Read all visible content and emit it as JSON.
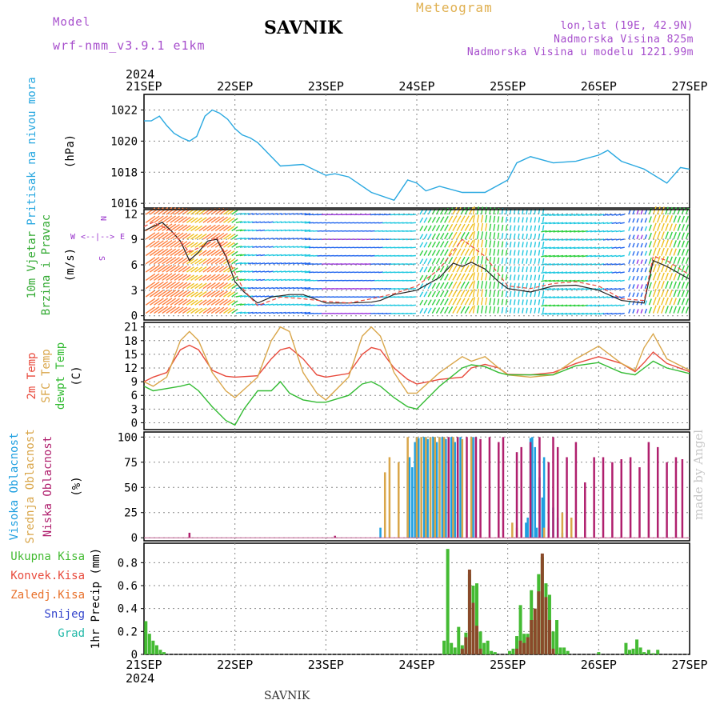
{
  "header": {
    "model_label": "Model",
    "model_name": "wrf-nmm_v3.9.1 e1km",
    "station": "SAVNIK",
    "product": "Meteogram",
    "info_lines": [
      "lon,lat (19E, 42.9N)",
      "Nadmorska Visina 825m",
      "Nadmorska Visina u modelu 1221.99m"
    ]
  },
  "footer": {
    "station": "SAVNIK",
    "credit": "made by Angel"
  },
  "x_axis": {
    "year": "2024",
    "ticks": [
      "21SEP",
      "22SEP",
      "23SEP",
      "24SEP",
      "25SEP",
      "26SEP",
      "27SEP"
    ]
  },
  "colors": {
    "pressure": "#29a8e0",
    "temp": "#e84a3c",
    "sfc_temp": "#d9a64a",
    "dewpt": "#33bb33",
    "high_cloud": "#1e9fe0",
    "mid_cloud": "#d9a64a",
    "low_cloud": "#b0206e",
    "total_precip": "#44bb33",
    "conv_precip": "#8a4a2a",
    "snow": "#3344cc",
    "grad": "#22b8a8",
    "wind_dir_label": "#9933cc"
  },
  "chart_data": [
    {
      "type": "line",
      "panel": "pressure",
      "ylabels": [
        "Pritisak na nivou mora",
        "(hPa)"
      ],
      "ylim": [
        1015.7,
        1023
      ],
      "yticks": [
        1016,
        1018,
        1020,
        1022
      ],
      "grid": true,
      "series": [
        {
          "name": "Pritisak na nivou mora",
          "x": [
            0,
            0.08,
            0.17,
            0.25,
            0.33,
            0.42,
            0.5,
            0.58,
            0.67,
            0.75,
            0.83,
            0.92,
            1.0,
            1.08,
            1.17,
            1.25,
            1.5,
            1.75,
            2.0,
            2.1,
            2.25,
            2.5,
            2.75,
            2.9,
            3.0,
            3.1,
            3.25,
            3.5,
            3.75,
            4.0,
            4.1,
            4.25,
            4.5,
            4.75,
            5.0,
            5.1,
            5.25,
            5.5,
            5.75,
            5.9,
            6.0
          ],
          "y": [
            1021.3,
            1021.3,
            1021.6,
            1021,
            1020.5,
            1020.2,
            1020,
            1020.3,
            1021.6,
            1022,
            1021.8,
            1021.4,
            1020.8,
            1020.4,
            1020.2,
            1019.9,
            1018.4,
            1018.5,
            1017.8,
            1017.9,
            1017.7,
            1016.7,
            1016.2,
            1017.5,
            1017.3,
            1016.8,
            1017.1,
            1016.7,
            1016.7,
            1017.5,
            1018.6,
            1019,
            1018.6,
            1018.7,
            1019.1,
            1019.4,
            1018.7,
            1018.2,
            1017.3,
            1018.3,
            1018.2
          ]
        }
      ]
    },
    {
      "type": "line",
      "panel": "wind",
      "ylabels": [
        "10m Vjetar",
        "Brzina i Pravac",
        "(m/s)"
      ],
      "direction_labels": [
        "W",
        "<--|-->",
        "E",
        "N",
        "S"
      ],
      "ylim": [
        -0.5,
        12.5
      ],
      "yticks": [
        0,
        3,
        6,
        9,
        12
      ],
      "grid": true,
      "series": [
        {
          "name": "Brzina",
          "x": [
            0,
            0.1,
            0.2,
            0.3,
            0.4,
            0.5,
            0.6,
            0.7,
            0.8,
            0.9,
            1.0,
            1.1,
            1.25,
            1.4,
            1.6,
            1.75,
            2.0,
            2.25,
            2.5,
            2.6,
            2.75,
            3.0,
            3.25,
            3.4,
            3.5,
            3.6,
            3.75,
            3.9,
            4.0,
            4.25,
            4.5,
            4.75,
            5.0,
            5.25,
            5.5,
            5.6,
            5.75,
            6.0
          ],
          "y": [
            10,
            10.5,
            11,
            10,
            8.8,
            6.5,
            7.5,
            8.8,
            9,
            7,
            4,
            2.8,
            1.5,
            2.2,
            2.5,
            2.5,
            1.5,
            1.5,
            1.6,
            1.8,
            2.5,
            3,
            4.5,
            6.2,
            5.8,
            6.3,
            5.5,
            4,
            3.2,
            2.8,
            3.5,
            3.6,
            3,
            1.8,
            1.5,
            6.5,
            5.8,
            4.3
          ]
        },
        {
          "name": "Udari",
          "x": [
            0,
            0.1,
            0.3,
            0.5,
            0.7,
            0.8,
            1.0,
            1.1,
            1.25,
            1.5,
            1.75,
            2.0,
            2.25,
            2.5,
            2.75,
            3.0,
            3.25,
            3.5,
            3.75,
            4.0,
            4.25,
            4.5,
            4.75,
            5.0,
            5.25,
            5.5,
            5.6,
            5.75,
            6.0
          ],
          "y": [
            10.5,
            11,
            10,
            7.5,
            8.5,
            9.3,
            5,
            3,
            1.2,
            2.2,
            2,
            1.7,
            1.5,
            2,
            2.6,
            3.5,
            5.5,
            9,
            7,
            3.5,
            3.2,
            3.8,
            4,
            3.5,
            2,
            1.8,
            7,
            6.5,
            4.8
          ]
        }
      ]
    },
    {
      "type": "line",
      "panel": "temperature",
      "ylabels": [
        "2m Temp",
        "SFC Temp",
        "dewpt Temp",
        "(C)"
      ],
      "ylim": [
        -1.5,
        22
      ],
      "yticks": [
        0,
        3,
        6,
        9,
        12,
        15,
        18,
        21
      ],
      "grid": true,
      "series": [
        {
          "name": "2m Temp",
          "x": [
            0,
            0.1,
            0.25,
            0.4,
            0.5,
            0.6,
            0.75,
            0.9,
            1.0,
            1.25,
            1.4,
            1.5,
            1.6,
            1.75,
            1.9,
            2.0,
            2.25,
            2.4,
            2.5,
            2.6,
            2.75,
            2.9,
            3.0,
            3.25,
            3.5,
            3.6,
            3.75,
            3.9,
            4.0,
            4.25,
            4.5,
            4.75,
            5.0,
            5.25,
            5.4,
            5.5,
            5.6,
            5.75,
            6.0
          ],
          "y": [
            9,
            10,
            11,
            16,
            17,
            16,
            11.5,
            10.2,
            10,
            10.3,
            14,
            16,
            16.5,
            14,
            10.5,
            10,
            10.8,
            15,
            16.5,
            16,
            12,
            9.5,
            8.5,
            9.5,
            10,
            12,
            12.8,
            12,
            10.6,
            10.5,
            11,
            13,
            14.5,
            13,
            11.2,
            13.2,
            15.5,
            13,
            11.2
          ]
        },
        {
          "name": "SFC Temp",
          "x": [
            0,
            0.1,
            0.25,
            0.4,
            0.5,
            0.6,
            0.75,
            0.9,
            1.0,
            1.25,
            1.4,
            1.5,
            1.6,
            1.75,
            1.9,
            2.0,
            2.25,
            2.4,
            2.5,
            2.6,
            2.75,
            2.9,
            3.0,
            3.25,
            3.5,
            3.6,
            3.75,
            3.9,
            4.0,
            4.25,
            4.5,
            4.75,
            5.0,
            5.25,
            5.4,
            5.5,
            5.6,
            5.75,
            6.0
          ],
          "y": [
            9,
            8,
            10,
            18,
            20,
            18,
            11,
            7,
            5.5,
            10,
            18,
            21,
            20,
            11,
            6.5,
            5,
            10,
            19,
            21,
            19,
            11,
            6.5,
            6.5,
            11,
            14.5,
            13.5,
            14.5,
            12,
            10.5,
            10,
            10.5,
            14,
            16.8,
            13,
            11.5,
            16.5,
            19.5,
            14,
            11.5
          ]
        },
        {
          "name": "dewpt Temp",
          "x": [
            0,
            0.1,
            0.25,
            0.4,
            0.5,
            0.6,
            0.75,
            0.9,
            1.0,
            1.1,
            1.25,
            1.4,
            1.5,
            1.6,
            1.75,
            1.9,
            2.0,
            2.25,
            2.4,
            2.5,
            2.6,
            2.75,
            2.9,
            3.0,
            3.25,
            3.5,
            3.6,
            3.75,
            3.9,
            4.0,
            4.25,
            4.5,
            4.75,
            5.0,
            5.25,
            5.4,
            5.5,
            5.6,
            5.75,
            6.0
          ],
          "y": [
            8,
            7,
            7.5,
            8,
            8.5,
            7,
            3.5,
            0.5,
            -0.5,
            3,
            7,
            7,
            9,
            6.5,
            5,
            4.5,
            4.5,
            6,
            8.5,
            9,
            8,
            5.5,
            3.5,
            3,
            8,
            12,
            12.7,
            12.3,
            11,
            10.5,
            10.5,
            10.5,
            12.5,
            13.2,
            11,
            10.5,
            12,
            13.5,
            12,
            10.8
          ]
        }
      ]
    },
    {
      "type": "bar",
      "panel": "clouds",
      "ylabels": [
        "Visoka Oblacnost",
        "Srednja Oblacnost",
        "Niska Oblacnost",
        "(%)"
      ],
      "ylim": [
        -3,
        105
      ],
      "yticks": [
        0,
        25,
        50,
        75,
        100
      ],
      "grid": true,
      "series": [
        {
          "name": "Visoka Oblacnost",
          "x": [
            2.6,
            2.8,
            2.9,
            2.92,
            2.95,
            2.98,
            3.0,
            3.02,
            3.05,
            3.08,
            3.1,
            3.12,
            3.15,
            3.18,
            3.2,
            3.22,
            3.25,
            3.28,
            3.3,
            3.32,
            3.35,
            3.38,
            3.4,
            3.42,
            3.45,
            3.48,
            3.6,
            3.62,
            3.65,
            4.2,
            4.22,
            4.25,
            4.27,
            4.3,
            4.32,
            4.35,
            4.38,
            4.4,
            4.45,
            4.5,
            4.55,
            4.6
          ],
          "y": [
            10,
            5,
            75,
            80,
            70,
            95,
            100,
            99,
            100,
            100,
            100,
            98,
            100,
            100,
            100,
            95,
            100,
            100,
            100,
            98,
            100,
            100,
            98,
            95,
            100,
            100,
            98,
            100,
            100,
            15,
            20,
            99,
            100,
            90,
            10,
            60,
            40,
            80,
            10,
            30,
            20,
            5
          ]
        },
        {
          "name": "Srednja Oblacnost",
          "x": [
            2.65,
            2.7,
            2.8,
            2.9,
            3.0,
            3.05,
            3.1,
            3.15,
            3.2,
            3.25,
            3.3,
            3.4,
            3.5,
            3.6,
            4.05,
            4.1,
            4.4,
            4.6,
            4.7
          ],
          "y": [
            65,
            80,
            75,
            100,
            100,
            100,
            100,
            100,
            100,
            100,
            100,
            100,
            98,
            100,
            15,
            10,
            10,
            25,
            20
          ]
        },
        {
          "name": "Niska Oblacnost",
          "x": [
            0.5,
            2.1,
            3.35,
            3.45,
            3.55,
            3.65,
            3.7,
            3.8,
            3.9,
            3.95,
            4.1,
            4.15,
            4.25,
            4.35,
            4.45,
            4.5,
            4.55,
            4.65,
            4.75,
            4.85,
            4.95,
            5.05,
            5.15,
            5.25,
            5.35,
            5.45,
            5.55,
            5.65,
            5.75,
            5.85,
            5.92
          ],
          "y": [
            5,
            2,
            100,
            100,
            100,
            100,
            98,
            100,
            95,
            100,
            85,
            90,
            95,
            100,
            75,
            100,
            90,
            80,
            95,
            55,
            80,
            80,
            75,
            78,
            80,
            70,
            95,
            90,
            75,
            80,
            78
          ]
        }
      ]
    },
    {
      "type": "bar",
      "panel": "precipitation",
      "ylabels": [
        "Ukupna Kisa",
        "Konvek.Kisa",
        "Zaledj.Kisa",
        "Snijeg",
        "Grad",
        "1hr Precip (mm)"
      ],
      "ylim": [
        0,
        0.97
      ],
      "yticks": [
        0,
        0.2,
        0.4,
        0.6,
        0.8
      ],
      "grid": true,
      "series": [
        {
          "name": "Ukupna Kisa",
          "x": [
            0.02,
            0.06,
            0.1,
            0.14,
            0.18,
            0.22,
            3.3,
            3.34,
            3.38,
            3.42,
            3.46,
            3.5,
            3.54,
            3.58,
            3.62,
            3.66,
            3.7,
            3.74,
            3.78,
            3.82,
            3.86,
            4.02,
            4.06,
            4.1,
            4.14,
            4.18,
            4.22,
            4.26,
            4.3,
            4.34,
            4.38,
            4.42,
            4.46,
            4.5,
            4.54,
            4.58,
            4.62,
            4.66,
            5.0,
            5.3,
            5.34,
            5.38,
            5.42,
            5.46,
            5.5,
            5.55,
            5.6,
            5.65
          ],
          "y": [
            0.29,
            0.18,
            0.12,
            0.08,
            0.04,
            0.02,
            0.12,
            0.92,
            0.1,
            0.06,
            0.24,
            0.08,
            0.19,
            0.7,
            0.6,
            0.62,
            0.2,
            0.1,
            0.12,
            0.03,
            0.02,
            0.03,
            0.05,
            0.16,
            0.43,
            0.18,
            0.18,
            0.56,
            0.3,
            0.7,
            0.85,
            0.62,
            0.52,
            0.2,
            0.3,
            0.06,
            0.06,
            0.03,
            0.02,
            0.1,
            0.04,
            0.05,
            0.13,
            0.06,
            0.02,
            0.04,
            0.01,
            0.04
          ]
        },
        {
          "name": "Konvek.Kisa",
          "x": [
            3.5,
            3.54,
            3.58,
            3.62,
            3.66,
            3.7,
            4.1,
            4.14,
            4.18,
            4.22,
            4.26,
            4.3,
            4.34,
            4.38,
            4.42,
            4.46,
            4.5
          ],
          "y": [
            0.05,
            0.15,
            0.74,
            0.45,
            0.25,
            0.05,
            0.05,
            0.12,
            0.1,
            0.15,
            0.3,
            0.4,
            0.55,
            0.88,
            0.5,
            0.3,
            0.05
          ]
        }
      ]
    }
  ]
}
